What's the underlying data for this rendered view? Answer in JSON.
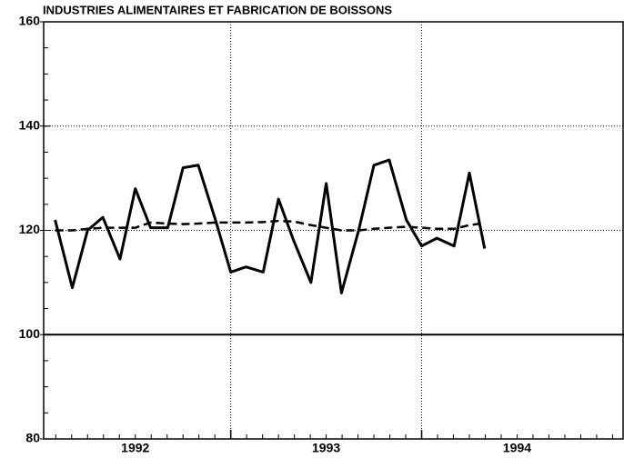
{
  "chart_data": {
    "type": "line",
    "title": "INDUSTRIES ALIMENTAIRES ET FABRICATION DE BOISSONS",
    "x": [
      1992.08,
      1992.17,
      1992.25,
      1992.33,
      1992.42,
      1992.5,
      1992.58,
      1992.67,
      1992.75,
      1992.83,
      1992.92,
      1993.0,
      1993.08,
      1993.17,
      1993.25,
      1993.33,
      1993.42,
      1993.5,
      1993.58,
      1993.67,
      1993.75,
      1993.83,
      1993.92,
      1994.0,
      1994.08,
      1994.17,
      1994.25,
      1994.33
    ],
    "series": [
      {
        "color": "#000000",
        "dash": "solid",
        "values": [
          122,
          109,
          120,
          122.5,
          114.5,
          128,
          120.5,
          120.5,
          132,
          132.5,
          122,
          112,
          113,
          112,
          126,
          118,
          110,
          129,
          108,
          120,
          132.5,
          133.5,
          122,
          117,
          118.5,
          117,
          131,
          116.5
        ]
      },
      {
        "color": "#000000",
        "dash": "dashed",
        "values": [
          120,
          120,
          120.3,
          120.5,
          120.5,
          120.5,
          121.5,
          121.3,
          121.2,
          121.3,
          121.5,
          121.5,
          121.5,
          121.6,
          121.8,
          121.7,
          121,
          120.5,
          120,
          120,
          120.3,
          120.5,
          120.7,
          120.5,
          120.3,
          120.3,
          121,
          121.4
        ]
      }
    ],
    "xlim": [
      1992.02,
      1995.06
    ],
    "xticks": [
      {
        "value": 1992.5,
        "label": "1992"
      },
      {
        "value": 1993.5,
        "label": "1993"
      },
      {
        "value": 1994.5,
        "label": "1994"
      }
    ],
    "xgrid": [
      1993,
      1994
    ],
    "ylim": [
      80,
      160
    ],
    "yticks": [
      80,
      100,
      120,
      140,
      160
    ],
    "baseline": 100,
    "grid": true
  }
}
